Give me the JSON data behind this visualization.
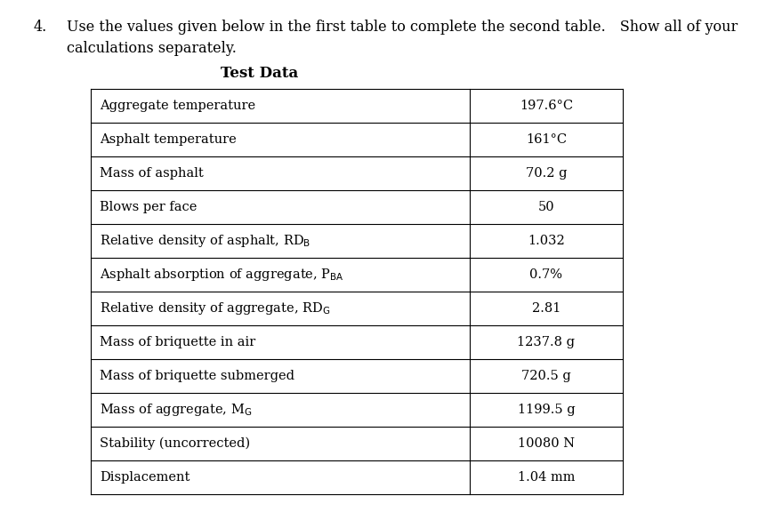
{
  "question_number": "4.",
  "question_line1": "Use the values given below in the first table to complete the second table. Show all of your",
  "question_line2": "calculations separately.",
  "table_title": "Test Data",
  "rows": [
    [
      "Aggregate temperature",
      "197.6°C"
    ],
    [
      "Asphalt temperature",
      "161°C"
    ],
    [
      "Mass of asphalt",
      "70.2 g"
    ],
    [
      "Blows per face",
      "50"
    ],
    [
      "Relative density of asphalt, RD_B",
      "1.032"
    ],
    [
      "Asphalt absorption of aggregate, P_BA",
      "0.7%"
    ],
    [
      "Relative density of aggregate, RD_G",
      "2.81"
    ],
    [
      "Mass of briquette in air",
      "1237.8 g"
    ],
    [
      "Mass of briquette submerged",
      "720.5 g"
    ],
    [
      "Mass of aggregate, M_G",
      "1199.5 g"
    ],
    [
      "Stability (uncorrected)",
      "10080 N"
    ],
    [
      "Displacement",
      "1.04 mm"
    ]
  ],
  "label_display": [
    "Aggregate temperature",
    "Asphalt temperature",
    "Mass of asphalt",
    "Blows per face",
    "Relative density of asphalt, RD$_{\\mathrm{B}}$",
    "Asphalt absorption of aggregate, P$_{\\mathrm{BA}}$",
    "Relative density of aggregate, RD$_{\\mathrm{G}}$",
    "Mass of briquette in air",
    "Mass of briquette submerged",
    "Mass of aggregate, M$_{\\mathrm{G}}$",
    "Stability (uncorrected)",
    "Displacement"
  ],
  "bg_color": "#ffffff",
  "text_color": "#000000",
  "border_color": "#000000",
  "table_title_fontsize": 12,
  "body_fontsize": 10.5,
  "question_fontsize": 11.5
}
